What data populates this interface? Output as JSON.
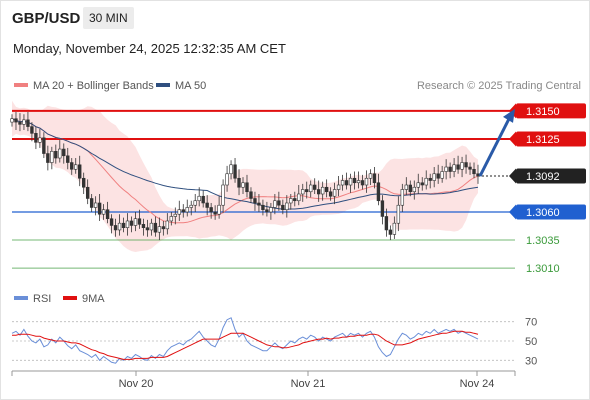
{
  "header": {
    "symbol": "GBP/USD",
    "timeframe": "30 MIN",
    "datetime": "Monday, November 24, 2025 12:32:35 AM CET"
  },
  "legend": {
    "ma20_label": "MA 20 + Bollinger Bands",
    "ma50_label": "MA 50",
    "ma20_color": "#f08080",
    "ma50_color": "#2f4f7f"
  },
  "copyright": "Research © 2025 Trading Central",
  "rsi_legend": {
    "rsi_label": "RSI",
    "ma_label": "9MA",
    "rsi_color": "#6a8fd8",
    "ma_color": "#e01010"
  },
  "chart_data": [
    {
      "type": "candlestick",
      "title": "",
      "x_ticks": [
        "Nov 20",
        "Nov 21",
        "Nov 24"
      ],
      "ylim": [
        1.2995,
        1.3165
      ],
      "levels": [
        {
          "value": 1.315,
          "label": "1.3150",
          "kind": "resistance",
          "color": "#e01010"
        },
        {
          "value": 1.3125,
          "label": "1.3125",
          "kind": "resistance",
          "color": "#e01010"
        },
        {
          "value": 1.3092,
          "label": "1.3092",
          "kind": "last_price",
          "color": "#222222"
        },
        {
          "value": 1.306,
          "label": "1.3060",
          "kind": "pivot",
          "color": "#2060d0"
        },
        {
          "value": 1.3035,
          "label": "1.3035",
          "kind": "support",
          "color": "#3a9a3a"
        },
        {
          "value": 1.301,
          "label": "1.3010",
          "kind": "support",
          "color": "#3a9a3a"
        }
      ],
      "forecast": {
        "from": 1.3092,
        "to": 1.315,
        "direction": "up",
        "color": "#2a5aa8"
      },
      "close_series": [
        1.3143,
        1.314,
        1.3138,
        1.3142,
        1.3136,
        1.313,
        1.3122,
        1.3126,
        1.3112,
        1.3104,
        1.3114,
        1.3108,
        1.3116,
        1.311,
        1.3104,
        1.3098,
        1.3102,
        1.309,
        1.3082,
        1.3072,
        1.3064,
        1.3068,
        1.3058,
        1.3062,
        1.3054,
        1.3048,
        1.3044,
        1.305,
        1.3046,
        1.3052,
        1.3048,
        1.3054,
        1.3049,
        1.3046,
        1.3044,
        1.305,
        1.3042,
        1.3047,
        1.3045,
        1.3052,
        1.3056,
        1.3058,
        1.3062,
        1.306,
        1.3064,
        1.3066,
        1.307,
        1.3074,
        1.3068,
        1.3064,
        1.306,
        1.3058,
        1.3066,
        1.3084,
        1.3094,
        1.3102,
        1.309,
        1.3082,
        1.3086,
        1.3078,
        1.3072,
        1.3068,
        1.3066,
        1.3062,
        1.306,
        1.3064,
        1.307,
        1.3066,
        1.3062,
        1.3068,
        1.3072,
        1.307,
        1.3076,
        1.308,
        1.3078,
        1.3084,
        1.308,
        1.3076,
        1.3082,
        1.3078,
        1.3074,
        1.308,
        1.3084,
        1.3088,
        1.3084,
        1.309,
        1.3086,
        1.3088,
        1.3084,
        1.309,
        1.3094,
        1.3086,
        1.307,
        1.3056,
        1.3044,
        1.304,
        1.305,
        1.3066,
        1.308,
        1.3084,
        1.3078,
        1.3082,
        1.3086,
        1.3084,
        1.309,
        1.3088,
        1.3094,
        1.309,
        1.3096,
        1.31,
        1.3096,
        1.3102,
        1.3098,
        1.3104,
        1.31,
        1.3098,
        1.3094,
        1.3092
      ]
    },
    {
      "type": "line",
      "title": "",
      "x_ticks": [
        "Nov 20",
        "Nov 21",
        "Nov 24"
      ],
      "y_ticks": [
        "70",
        "50",
        "30"
      ],
      "ylim": [
        20,
        80
      ],
      "series": [
        {
          "name": "RSI",
          "values": [
            58,
            60,
            56,
            62,
            55,
            50,
            48,
            52,
            44,
            46,
            52,
            48,
            54,
            50,
            45,
            42,
            46,
            40,
            38,
            36,
            33,
            36,
            30,
            34,
            31,
            28,
            27,
            32,
            30,
            34,
            32,
            36,
            34,
            31,
            30,
            35,
            32,
            36,
            34,
            40,
            44,
            46,
            48,
            46,
            50,
            52,
            56,
            60,
            54,
            50,
            46,
            44,
            52,
            64,
            72,
            74,
            62,
            54,
            58,
            50,
            46,
            44,
            42,
            40,
            40,
            44,
            48,
            44,
            42,
            46,
            50,
            48,
            52,
            54,
            52,
            56,
            54,
            50,
            54,
            52,
            50,
            54,
            56,
            58,
            54,
            58,
            56,
            58,
            54,
            58,
            60,
            54,
            44,
            38,
            34,
            36,
            44,
            52,
            58,
            56,
            52,
            54,
            58,
            56,
            60,
            58,
            62,
            58,
            60,
            62,
            60,
            62,
            58,
            60,
            58,
            56,
            54,
            52
          ]
        },
        {
          "name": "9MA",
          "values": [
            56,
            56,
            57,
            57,
            57,
            56,
            55,
            55,
            53,
            52,
            51,
            50,
            50,
            50,
            49,
            48,
            48,
            47,
            45,
            43,
            41,
            40,
            38,
            37,
            35,
            34,
            33,
            32,
            31,
            31,
            31,
            32,
            32,
            32,
            32,
            33,
            33,
            33,
            33,
            34,
            36,
            38,
            40,
            42,
            44,
            46,
            48,
            50,
            52,
            52,
            52,
            52,
            52,
            54,
            56,
            58,
            58,
            58,
            58,
            56,
            54,
            52,
            50,
            48,
            46,
            45,
            44,
            44,
            43,
            43,
            44,
            45,
            46,
            48,
            49,
            50,
            51,
            52,
            52,
            53,
            52,
            53,
            53,
            54,
            54,
            55,
            55,
            56,
            56,
            56,
            57,
            57,
            56,
            53,
            50,
            48,
            46,
            46,
            46,
            47,
            48,
            50,
            52,
            53,
            54,
            55,
            56,
            57,
            58,
            58,
            59,
            60,
            60,
            60,
            59,
            59,
            58,
            57
          ]
        }
      ]
    }
  ]
}
